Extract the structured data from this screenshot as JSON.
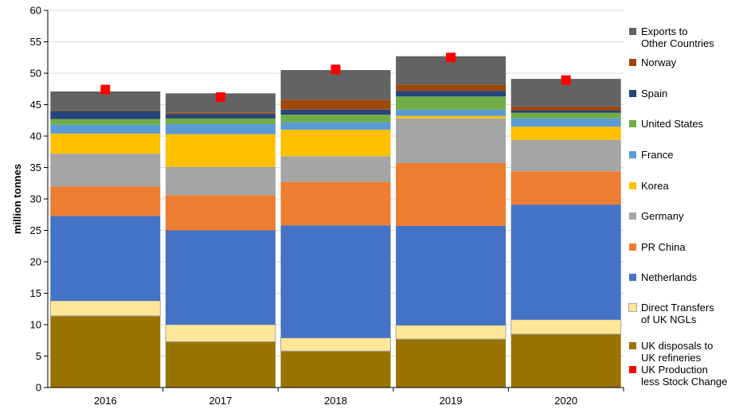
{
  "chart_data": {
    "type": "bar",
    "stacked": true,
    "ylabel": "million tonnes",
    "ylim": [
      0,
      60
    ],
    "yticks": [
      0,
      5,
      10,
      15,
      20,
      25,
      30,
      35,
      40,
      45,
      50,
      55,
      60
    ],
    "grid": true,
    "legend_position": "right",
    "categories": [
      "2016",
      "2017",
      "2018",
      "2019",
      "2020"
    ],
    "series": [
      {
        "name": "UK disposals to\nUK refineries",
        "color": "#997300",
        "values": [
          11.4,
          7.3,
          5.8,
          7.7,
          8.5
        ]
      },
      {
        "name": "Direct Transfers\nof UK NGLs",
        "color": "#ffe699",
        "values": [
          2.4,
          2.7,
          2.1,
          2.2,
          2.3
        ]
      },
      {
        "name": "Netherlands",
        "color": "#4472c4",
        "values": [
          13.5,
          15.0,
          17.9,
          15.8,
          18.3
        ]
      },
      {
        "name": "PR China",
        "color": "#ed7d31",
        "values": [
          4.7,
          5.6,
          6.9,
          10.0,
          5.3
        ]
      },
      {
        "name": "Germany",
        "color": "#a5a5a5",
        "values": [
          5.2,
          4.5,
          4.1,
          7.1,
          5.0
        ]
      },
      {
        "name": "Korea",
        "color": "#ffc000",
        "values": [
          3.2,
          5.2,
          4.2,
          0.4,
          2.1
        ]
      },
      {
        "name": "France",
        "color": "#5b9bd5",
        "values": [
          1.4,
          1.6,
          1.2,
          1.0,
          1.3
        ]
      },
      {
        "name": "United States",
        "color": "#70ad47",
        "values": [
          0.9,
          0.9,
          1.2,
          2.1,
          0.9
        ]
      },
      {
        "name": "Spain",
        "color": "#264478",
        "values": [
          1.3,
          0.7,
          0.8,
          0.9,
          0.35
        ]
      },
      {
        "name": "Norway",
        "color": "#9e480e",
        "values": [
          0.1,
          0.2,
          1.6,
          1.0,
          0.65
        ]
      },
      {
        "name": "Exports to\nOther Countries",
        "color": "#636363",
        "values": [
          3.0,
          3.1,
          4.7,
          4.5,
          4.4
        ]
      }
    ],
    "markers": {
      "name": "UK Production\nless Stock Change",
      "color": "#ff0000",
      "values": [
        47.4,
        46.2,
        50.6,
        52.5,
        48.9
      ]
    }
  }
}
